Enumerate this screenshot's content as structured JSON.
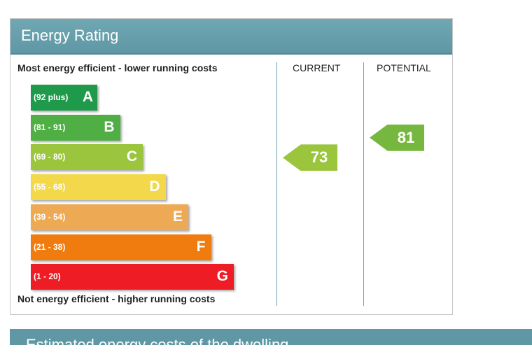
{
  "panel": {
    "title": "Energy Rating"
  },
  "chart_data": {
    "type": "bar",
    "top_label": "Most energy efficient - lower running costs",
    "bottom_label": "Not energy efficient - higher running costs",
    "column_labels": {
      "current": "CURRENT",
      "potential": "POTENTIAL"
    },
    "bands": [
      {
        "letter": "A",
        "range": "(92 plus)",
        "min": 92,
        "max": 100,
        "color": "#1f9a4a"
      },
      {
        "letter": "B",
        "range": "(81 - 91)",
        "min": 81,
        "max": 91,
        "color": "#4fae44"
      },
      {
        "letter": "C",
        "range": "(69 - 80)",
        "min": 69,
        "max": 80,
        "color": "#9cc53e"
      },
      {
        "letter": "D",
        "range": "(55 - 68)",
        "min": 55,
        "max": 68,
        "color": "#f2d84a"
      },
      {
        "letter": "E",
        "range": "(39 - 54)",
        "min": 39,
        "max": 54,
        "color": "#eda954"
      },
      {
        "letter": "F",
        "range": "(21 - 38)",
        "min": 21,
        "max": 38,
        "color": "#f07c0f"
      },
      {
        "letter": "G",
        "range": "(1 - 20)",
        "min": 1,
        "max": 20,
        "color": "#ee1c25"
      }
    ],
    "current": {
      "value": 73,
      "band": "C",
      "color": "#9cc53e"
    },
    "potential": {
      "value": 81,
      "band": "B",
      "color": "#76b83f"
    }
  },
  "bottom_bar": {
    "title": "Estimated energy costs of the dwelling"
  }
}
